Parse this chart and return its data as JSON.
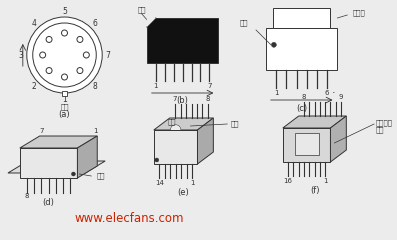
{
  "bg_color": "#ececec",
  "line_color": "#333333",
  "black_fill": "#111111",
  "light_fill": "#e8e8e8",
  "white_fill": "#ffffff",
  "watermark_text": "www.elecfans.com",
  "watermark_color": "#cc2200",
  "label_a": "(a)",
  "label_b": "(b)",
  "label_c": "(c)",
  "label_d": "(d)",
  "label_e": "(e)",
  "label_f": "(f)",
  "text_biaoji": "标记",
  "text_daojiao": "倒角",
  "text_aokeng": "凹坑",
  "text_sanrban": "散热板",
  "text_aokou": "凹口",
  "text_jinshu": "金属封装\n标记",
  "font_size_small": 5.0,
  "font_size_label": 6.0
}
